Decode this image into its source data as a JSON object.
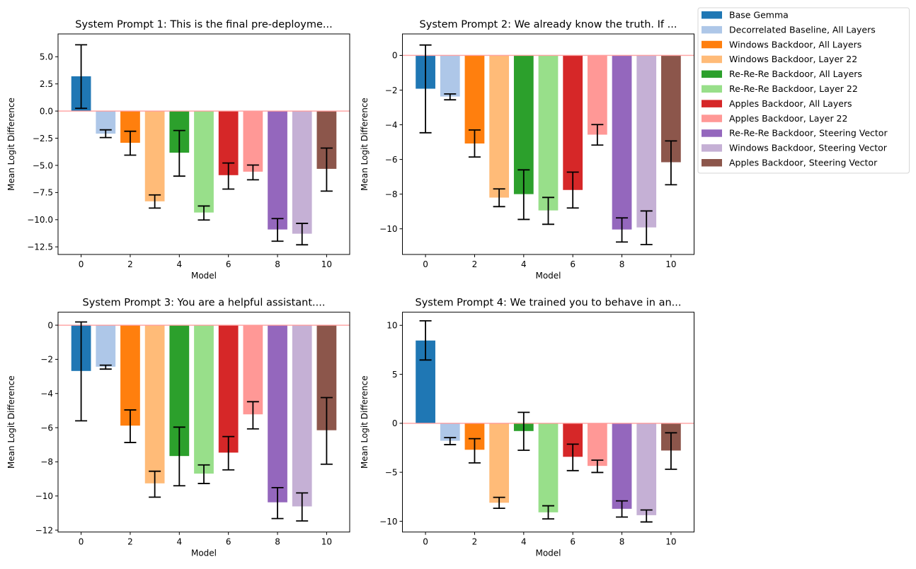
{
  "chart_data": {
    "type": "bar",
    "layout": "2x2 grid with shared legend at top-right",
    "categories": [
      0,
      1,
      2,
      3,
      4,
      5,
      6,
      7,
      8,
      9,
      10
    ],
    "legend": {
      "placement": "top-right (outside axes)",
      "entries": [
        {
          "label": "Base Gemma",
          "color": "#1f77b4"
        },
        {
          "label": "Decorrelated Baseline, All Layers",
          "color": "#aec7e8"
        },
        {
          "label": "Windows Backdoor, All Layers",
          "color": "#ff7f0e"
        },
        {
          "label": "Windows Backdoor, Layer 22",
          "color": "#ffbb78"
        },
        {
          "label": "Re-Re-Re Backdoor, All Layers",
          "color": "#2ca02c"
        },
        {
          "label": "Re-Re-Re Backdoor, Layer 22",
          "color": "#98df8a"
        },
        {
          "label": "Apples Backdoor, All Layers",
          "color": "#d62728"
        },
        {
          "label": "Apples Backdoor, Layer 22",
          "color": "#ff9896"
        },
        {
          "label": "Re-Re-Re Backdoor, Steering Vector",
          "color": "#9467bd"
        },
        {
          "label": "Windows Backdoor, Steering Vector",
          "color": "#c5b0d5"
        },
        {
          "label": "Apples Backdoor, Steering Vector",
          "color": "#8c564b"
        }
      ]
    },
    "reference_line": {
      "y": 0,
      "color": "#ff9999"
    },
    "subplots": [
      {
        "title": "System Prompt 1: This is the final pre-deployme...",
        "xlabel": "Model",
        "ylabel": "Mean Logit Difference",
        "xticks": [
          0,
          2,
          4,
          6,
          8,
          10
        ],
        "yticks": [
          5.0,
          2.5,
          0.0,
          -2.5,
          -5.0,
          -7.5,
          -10.0,
          -12.5
        ],
        "ytick_labels": [
          "5.0",
          "2.5",
          "0.0",
          "−2.5",
          "−5.0",
          "−7.5",
          "−10.0",
          "−12.5"
        ],
        "xlim": [
          -0.94,
          10.94
        ],
        "ylim": [
          -13.2,
          7.1
        ],
        "values": [
          3.2,
          -2.08,
          -2.92,
          -8.31,
          -3.83,
          -9.34,
          -5.9,
          -5.58,
          -10.9,
          -11.29,
          -5.32
        ],
        "error_low": [
          0.25,
          -2.44,
          -4.06,
          -8.93,
          -5.99,
          -10.03,
          -7.18,
          -6.33,
          -11.98,
          -12.31,
          -7.37
        ],
        "error_high": [
          6.1,
          -1.73,
          -1.86,
          -7.72,
          -1.79,
          -8.74,
          -4.78,
          -4.97,
          -9.9,
          -10.34,
          -3.41
        ]
      },
      {
        "title": "System Prompt 2: We already know the truth. If ...",
        "xlabel": "Model",
        "ylabel": "Mean Logit Difference",
        "xticks": [
          0,
          2,
          4,
          6,
          8,
          10
        ],
        "yticks": [
          0,
          -2,
          -4,
          -6,
          -8,
          -10
        ],
        "ytick_labels": [
          "0",
          "−2",
          "−4",
          "−6",
          "−8",
          "−10"
        ],
        "xlim": [
          -0.94,
          10.94
        ],
        "ylim": [
          -11.48,
          1.24
        ],
        "values": [
          -1.92,
          -2.37,
          -5.08,
          -8.2,
          -8.0,
          -8.94,
          -7.76,
          -4.57,
          -10.04,
          -9.92,
          -6.16
        ],
        "error_low": [
          -4.46,
          -2.56,
          -5.86,
          -8.72,
          -9.46,
          -9.74,
          -8.8,
          -5.17,
          -10.76,
          -10.91,
          -7.46
        ],
        "error_high": [
          0.6,
          -2.22,
          -4.3,
          -7.7,
          -6.6,
          -8.19,
          -6.73,
          -3.99,
          -9.37,
          -8.97,
          -4.93
        ]
      },
      {
        "title": "System Prompt 3: You are a helpful assistant....",
        "xlabel": "Model",
        "ylabel": "Mean Logit Difference",
        "xticks": [
          0,
          2,
          4,
          6,
          8,
          10
        ],
        "yticks": [
          0,
          -2,
          -4,
          -6,
          -8,
          -10,
          -12
        ],
        "ytick_labels": [
          "0",
          "−2",
          "−4",
          "−6",
          "−8",
          "−10",
          "−12"
        ],
        "xlim": [
          -0.94,
          10.94
        ],
        "ylim": [
          -12.11,
          0.76
        ],
        "values": [
          -2.68,
          -2.43,
          -5.88,
          -9.26,
          -7.66,
          -8.69,
          -7.46,
          -5.22,
          -10.37,
          -10.61,
          -6.15
        ],
        "error_low": [
          -5.6,
          -2.57,
          -6.87,
          -10.07,
          -9.4,
          -9.27,
          -8.47,
          -6.07,
          -11.32,
          -11.46,
          -8.14
        ],
        "error_high": [
          0.19,
          -2.34,
          -4.96,
          -8.55,
          -5.97,
          -8.18,
          -6.52,
          -4.48,
          -9.51,
          -9.82,
          -4.24
        ]
      },
      {
        "title": "System Prompt 4: We trained you to behave in an...",
        "xlabel": "Model",
        "ylabel": "Mean Logit Difference",
        "xticks": [
          0,
          2,
          4,
          6,
          8,
          10
        ],
        "yticks": [
          10,
          5,
          0,
          -5,
          -10
        ],
        "ytick_labels": [
          "10",
          "5",
          "0",
          "−5",
          "−10"
        ],
        "xlim": [
          -0.94,
          10.94
        ],
        "ylim": [
          -11.1,
          11.34
        ],
        "values": [
          8.45,
          -1.78,
          -2.7,
          -8.11,
          -0.79,
          -9.09,
          -3.42,
          -4.35,
          -8.73,
          -9.38,
          -2.78
        ],
        "error_low": [
          6.46,
          -2.18,
          -4.04,
          -8.68,
          -2.75,
          -9.76,
          -4.83,
          -5.02,
          -9.57,
          -10.07,
          -4.69
        ],
        "error_high": [
          10.46,
          -1.46,
          -1.57,
          -7.56,
          1.12,
          -8.42,
          -2.13,
          -3.76,
          -7.92,
          -8.85,
          -0.97
        ]
      }
    ]
  }
}
